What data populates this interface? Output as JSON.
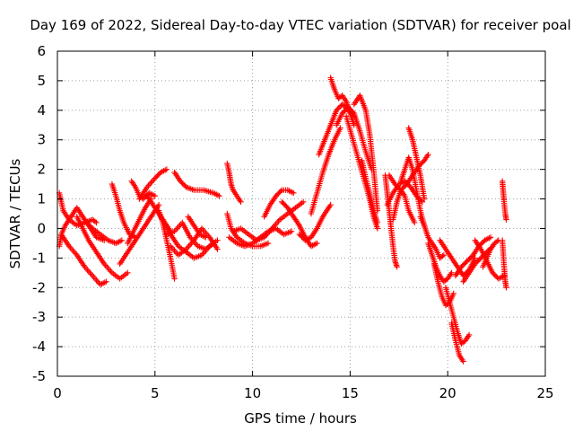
{
  "chart_data": {
    "type": "scatter",
    "title": "Day 169 of 2022, Sidereal Day-to-day VTEC variation (SDTVAR) for receiver poal",
    "xlabel": "GPS time / hours",
    "ylabel": "SDTVAR / TECUs",
    "xlim": [
      0,
      25
    ],
    "ylim": [
      -5,
      6
    ],
    "x_ticks": [
      0,
      5,
      10,
      15,
      20,
      25
    ],
    "y_ticks": [
      -5,
      -4,
      -3,
      -2,
      -1,
      0,
      1,
      2,
      3,
      4,
      5,
      6
    ],
    "grid": true,
    "marker": "+",
    "colors": {
      "series": "#ff0000",
      "grid": "#a0a0a0",
      "axis": "#000000"
    },
    "series": [
      {
        "name": "SDTVAR",
        "traces": [
          {
            "x": [
              0.1,
              0.3,
              0.6,
              1.0,
              1.4,
              1.8,
              2.0
            ],
            "y": [
              1.2,
              0.6,
              0.3,
              0.1,
              0.2,
              0.3,
              0.2
            ]
          },
          {
            "x": [
              0.1,
              0.2,
              0.4,
              0.6,
              0.8,
              1.0,
              1.3,
              1.6,
              2.0,
              2.4
            ],
            "y": [
              -0.6,
              -0.2,
              0.1,
              0.3,
              0.5,
              0.7,
              0.4,
              0.1,
              -0.3,
              -0.4
            ]
          },
          {
            "x": [
              0.2,
              0.6,
              1.0,
              1.4,
              1.8,
              2.2,
              2.5
            ],
            "y": [
              -0.2,
              -0.6,
              -0.9,
              -1.3,
              -1.6,
              -1.9,
              -1.8
            ]
          },
          {
            "x": [
              1.0,
              1.3,
              1.6,
              2.0,
              2.4,
              2.8,
              3.2,
              3.6
            ],
            "y": [
              0.4,
              0.0,
              -0.4,
              -0.8,
              -1.2,
              -1.5,
              -1.7,
              -1.5
            ]
          },
          {
            "x": [
              1.5,
              1.8,
              2.2,
              2.6,
              3.0,
              3.3
            ],
            "y": [
              0.2,
              0.0,
              -0.2,
              -0.4,
              -0.5,
              -0.4
            ]
          },
          {
            "x": [
              2.8,
              3.0,
              3.2,
              3.4,
              3.7,
              4.0
            ],
            "y": [
              1.5,
              1.1,
              0.6,
              0.2,
              -0.2,
              -0.3
            ]
          },
          {
            "x": [
              3.2,
              3.6,
              4.0,
              4.4,
              4.8,
              5.2
            ],
            "y": [
              -1.2,
              -0.8,
              -0.4,
              0.0,
              0.4,
              0.8
            ]
          },
          {
            "x": [
              3.6,
              3.9,
              4.2,
              4.5,
              4.8
            ],
            "y": [
              -0.5,
              -0.1,
              0.3,
              0.7,
              1.0
            ]
          },
          {
            "x": [
              3.8,
              4.0,
              4.2,
              4.4,
              4.7,
              5.0
            ],
            "y": [
              1.6,
              1.4,
              1.1,
              1.0,
              1.2,
              1.1
            ]
          },
          {
            "x": [
              4.2,
              4.6,
              5.0,
              5.3,
              5.6
            ],
            "y": [
              1.0,
              1.4,
              1.7,
              1.9,
              2.0
            ]
          },
          {
            "x": [
              4.6,
              4.9,
              5.2,
              5.5,
              5.8
            ],
            "y": [
              1.1,
              0.8,
              0.5,
              0.2,
              -0.1
            ]
          },
          {
            "x": [
              5.2,
              5.4,
              5.6,
              5.8,
              6.0
            ],
            "y": [
              0.6,
              0.2,
              -0.4,
              -1.0,
              -1.7
            ]
          },
          {
            "x": [
              5.4,
              5.8,
              6.2,
              6.6,
              7.0,
              7.4,
              7.8,
              8.2
            ],
            "y": [
              0.3,
              -0.2,
              -0.6,
              -0.8,
              -1.0,
              -0.9,
              -0.6,
              -0.4
            ]
          },
          {
            "x": [
              5.6,
              6.0,
              6.4,
              6.8,
              7.2,
              7.6,
              8.0
            ],
            "y": [
              -0.2,
              -0.1,
              0.2,
              -0.3,
              -0.6,
              -0.7,
              -0.5
            ]
          },
          {
            "x": [
              5.8,
              6.2,
              6.6,
              7.0,
              7.4,
              7.8,
              8.2
            ],
            "y": [
              -0.6,
              -0.9,
              -0.7,
              -0.4,
              0.0,
              -0.3,
              -0.7
            ]
          },
          {
            "x": [
              6.0,
              6.3,
              6.6,
              7.0,
              7.5,
              8.0,
              8.3
            ],
            "y": [
              1.9,
              1.6,
              1.4,
              1.3,
              1.3,
              1.2,
              1.1
            ]
          },
          {
            "x": [
              6.7,
              7.0,
              7.3,
              7.6
            ],
            "y": [
              0.4,
              0.1,
              -0.2,
              -0.3
            ]
          },
          {
            "x": [
              8.7,
              8.8,
              8.9,
              9.0,
              9.2,
              9.4
            ],
            "y": [
              2.2,
              1.9,
              1.5,
              1.3,
              1.1,
              0.9
            ]
          },
          {
            "x": [
              8.7,
              8.9,
              9.2,
              9.6,
              10.0,
              10.4,
              10.8
            ],
            "y": [
              0.5,
              0.0,
              -0.3,
              -0.5,
              -0.6,
              -0.6,
              -0.5
            ]
          },
          {
            "x": [
              8.8,
              9.2,
              9.6,
              10.0,
              10.4,
              10.8,
              11.2,
              11.6,
              12.0
            ],
            "y": [
              -0.3,
              -0.5,
              -0.6,
              -0.5,
              -0.3,
              -0.1,
              0.0,
              -0.2,
              -0.1
            ]
          },
          {
            "x": [
              9.0,
              9.4,
              9.8,
              10.2,
              10.6,
              11.0,
              11.4,
              11.8,
              12.2,
              12.6
            ],
            "y": [
              -0.1,
              0.0,
              -0.2,
              -0.4,
              -0.3,
              0.0,
              0.3,
              0.5,
              0.7,
              0.9
            ]
          },
          {
            "x": [
              10.6,
              10.9,
              11.2,
              11.5,
              11.8,
              12.1
            ],
            "y": [
              0.4,
              0.8,
              1.1,
              1.3,
              1.3,
              1.2
            ]
          },
          {
            "x": [
              11.5,
              11.8,
              12.1,
              12.4,
              12.7,
              13.0,
              13.3
            ],
            "y": [
              0.9,
              0.7,
              0.4,
              0.1,
              -0.3,
              -0.6,
              -0.5
            ]
          },
          {
            "x": [
              12.4,
              12.7,
              13.0,
              13.3,
              13.6,
              14.0
            ],
            "y": [
              -0.2,
              -0.4,
              -0.3,
              0.0,
              0.4,
              0.8
            ]
          },
          {
            "x": [
              13.0,
              13.3,
              13.6,
              13.9,
              14.2,
              14.5
            ],
            "y": [
              0.5,
              1.2,
              1.9,
              2.5,
              3.0,
              3.4
            ]
          },
          {
            "x": [
              13.4,
              13.7,
              14.0,
              14.3,
              14.6,
              14.9,
              15.2
            ],
            "y": [
              2.5,
              3.0,
              3.5,
              4.0,
              4.2,
              4.0,
              3.8
            ]
          },
          {
            "x": [
              14.0,
              14.2,
              14.4,
              14.6,
              14.8,
              15.0,
              15.2
            ],
            "y": [
              5.1,
              4.7,
              4.4,
              4.5,
              4.3,
              3.9,
              3.5
            ]
          },
          {
            "x": [
              14.3,
              14.6,
              14.9,
              15.2,
              15.5,
              15.8,
              16.1
            ],
            "y": [
              3.5,
              3.9,
              4.1,
              3.9,
              3.3,
              2.6,
              2.0
            ]
          },
          {
            "x": [
              14.8,
              15.1,
              15.4,
              15.7,
              16.0,
              16.2,
              16.4
            ],
            "y": [
              3.8,
              3.1,
              2.4,
              1.7,
              1.0,
              0.4,
              0.0
            ]
          },
          {
            "x": [
              15.2,
              15.5,
              15.8,
              16.0,
              16.2,
              16.4
            ],
            "y": [
              4.2,
              4.5,
              4.0,
              3.2,
              2.0,
              0.6
            ]
          },
          {
            "x": [
              15.6,
              15.8,
              16.0,
              16.2,
              16.4
            ],
            "y": [
              2.3,
              1.7,
              1.2,
              0.6,
              0.2
            ]
          },
          {
            "x": [
              16.8,
              16.9,
              17.0,
              17.1,
              17.2,
              17.3,
              17.4
            ],
            "y": [
              1.8,
              1.2,
              0.6,
              0.0,
              -0.6,
              -1.1,
              -1.3
            ]
          },
          {
            "x": [
              16.9,
              17.2,
              17.5,
              17.8,
              18.1,
              18.4,
              18.7
            ],
            "y": [
              0.8,
              1.2,
              1.5,
              1.6,
              1.4,
              1.1,
              0.9
            ]
          },
          {
            "x": [
              17.0,
              17.3,
              17.6,
              17.9,
              18.2,
              18.5,
              18.8,
              19.0
            ],
            "y": [
              1.8,
              1.5,
              1.3,
              1.5,
              1.8,
              2.1,
              2.3,
              2.5
            ]
          },
          {
            "x": [
              17.2,
              17.4,
              17.6,
              17.8,
              18.0,
              18.3
            ],
            "y": [
              0.3,
              0.9,
              1.3,
              1.1,
              0.6,
              0.2
            ]
          },
          {
            "x": [
              17.6,
              17.8,
              18.0,
              18.2,
              18.4,
              18.6,
              18.8
            ],
            "y": [
              1.6,
              2.0,
              2.4,
              2.0,
              1.3,
              0.6,
              0.1
            ]
          },
          {
            "x": [
              18.0,
              18.2,
              18.4,
              18.6,
              18.8
            ],
            "y": [
              3.4,
              3.0,
              2.4,
              1.8,
              1.0
            ]
          },
          {
            "x": [
              18.6,
              18.8,
              19.0,
              19.2,
              19.4,
              19.6,
              19.8
            ],
            "y": [
              0.4,
              0.1,
              -0.3,
              -0.5,
              -0.7,
              -1.0,
              -0.9
            ]
          },
          {
            "x": [
              19.0,
              19.2,
              19.4,
              19.6,
              19.8,
              20.0,
              20.2
            ],
            "y": [
              -0.5,
              -0.9,
              -1.3,
              -1.6,
              -1.8,
              -1.7,
              -1.5
            ]
          },
          {
            "x": [
              19.3,
              19.5,
              19.7,
              19.9,
              20.1,
              20.3
            ],
            "y": [
              -1.2,
              -1.8,
              -2.3,
              -2.6,
              -2.5,
              -2.2
            ]
          },
          {
            "x": [
              19.6,
              19.9,
              20.2,
              20.5,
              20.8,
              21.1,
              21.4
            ],
            "y": [
              -0.4,
              -0.7,
              -1.0,
              -1.3,
              -1.6,
              -1.4,
              -1.0
            ]
          },
          {
            "x": [
              19.9,
              20.1,
              20.3,
              20.5,
              20.7,
              20.9,
              21.1
            ],
            "y": [
              -2.0,
              -2.5,
              -3.0,
              -3.5,
              -3.9,
              -3.8,
              -3.6
            ]
          },
          {
            "x": [
              20.2,
              20.4,
              20.6,
              20.8
            ],
            "y": [
              -3.2,
              -3.8,
              -4.3,
              -4.5
            ]
          },
          {
            "x": [
              20.4,
              20.7,
              21.0,
              21.3,
              21.6,
              21.9,
              22.2
            ],
            "y": [
              -1.6,
              -1.3,
              -1.1,
              -0.9,
              -0.6,
              -0.4,
              -0.3
            ]
          },
          {
            "x": [
              20.8,
              21.1,
              21.4,
              21.7,
              22.0,
              22.3
            ],
            "y": [
              -1.8,
              -1.5,
              -1.2,
              -1.0,
              -0.8,
              -0.6
            ]
          },
          {
            "x": [
              21.4,
              21.7,
              22.0,
              22.3,
              22.6,
              22.9
            ],
            "y": [
              -0.4,
              -0.7,
              -1.1,
              -1.5,
              -1.7,
              -1.6
            ]
          },
          {
            "x": [
              21.8,
              22.0,
              22.2,
              22.4,
              22.6
            ],
            "y": [
              -1.3,
              -1.0,
              -0.7,
              -0.5,
              -0.4
            ]
          },
          {
            "x": [
              22.8,
              22.85,
              22.9,
              22.95,
              23.0
            ],
            "y": [
              1.6,
              1.2,
              0.8,
              0.5,
              0.3
            ]
          },
          {
            "x": [
              22.8,
              22.85,
              22.9,
              22.95,
              23.0
            ],
            "y": [
              -0.4,
              -0.9,
              -1.4,
              -1.8,
              -2.0
            ]
          }
        ]
      }
    ]
  }
}
